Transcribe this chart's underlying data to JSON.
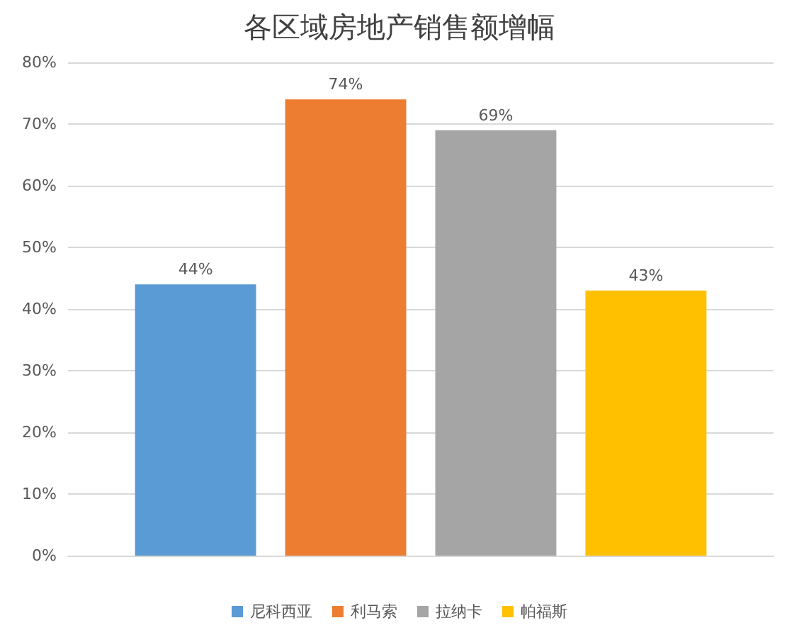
{
  "chart_data": {
    "type": "bar",
    "title": "各区域房地产销售额增幅",
    "categories": [
      null
    ],
    "series": [
      {
        "name": "尼科西亚",
        "color": "#5b9bd5",
        "values": [
          44
        ],
        "value_labels": [
          "44%"
        ]
      },
      {
        "name": "利马索",
        "color": "#ed7d31",
        "values": [
          74
        ],
        "value_labels": [
          "74%"
        ]
      },
      {
        "name": "拉纳卡",
        "color": "#a5a5a5",
        "values": [
          69
        ],
        "value_labels": [
          "69%"
        ]
      },
      {
        "name": "帕福斯",
        "color": "#ffc000",
        "values": [
          43
        ],
        "value_labels": [
          "43%"
        ]
      }
    ],
    "ylim": [
      0,
      80
    ],
    "yticks": [
      {
        "value": 0,
        "label": "0%"
      },
      {
        "value": 10,
        "label": "10%"
      },
      {
        "value": 20,
        "label": "20%"
      },
      {
        "value": 30,
        "label": "30%"
      },
      {
        "value": 40,
        "label": "40%"
      },
      {
        "value": 50,
        "label": "50%"
      },
      {
        "value": 60,
        "label": "60%"
      },
      {
        "value": 70,
        "label": "70%"
      },
      {
        "value": 80,
        "label": "80%"
      }
    ],
    "grid": true,
    "legend": "bottom"
  }
}
